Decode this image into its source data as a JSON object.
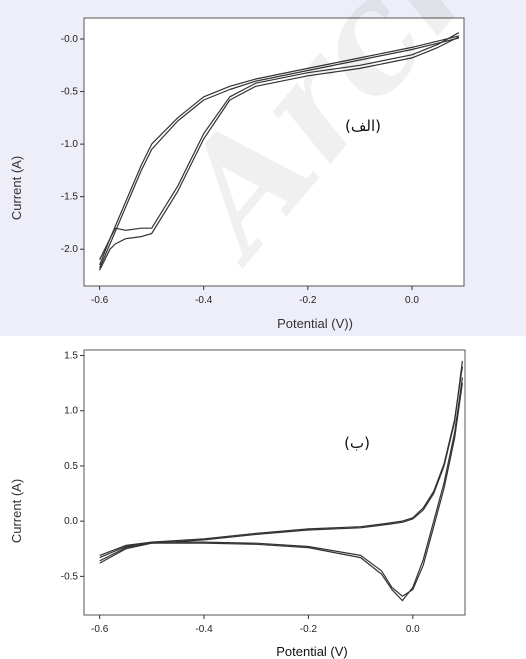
{
  "watermark_text": "Archive",
  "chart_data": [
    {
      "type": "line",
      "panel_label": "(الف)",
      "xlabel": "Potential (V))",
      "ylabel": "Current (A)",
      "xlim": [
        -0.63,
        0.1
      ],
      "ylim": [
        -2.35,
        0.2
      ],
      "xticks": [
        -0.6,
        -0.4,
        -0.2,
        0.0
      ],
      "xtick_labels": [
        "-0.6",
        "-0.4",
        "-0.2",
        "0.0"
      ],
      "yticks": [
        0.0,
        -0.5,
        -1.0,
        -1.5,
        -2.0
      ],
      "ytick_labels": [
        "-0.0",
        "-0.5",
        "-1.0",
        "-1.5",
        "-2.0"
      ],
      "series": [
        {
          "x": [
            -0.6,
            -0.58,
            -0.55,
            -0.52,
            -0.5,
            -0.45,
            -0.4,
            -0.35,
            -0.3,
            -0.2,
            -0.1,
            0.0,
            0.05,
            0.09
          ],
          "y": [
            -2.1,
            -1.9,
            -1.55,
            -1.2,
            -1.0,
            -0.75,
            -0.55,
            -0.45,
            -0.38,
            -0.28,
            -0.18,
            -0.08,
            -0.02,
            0.03
          ]
        },
        {
          "x": [
            0.09,
            0.05,
            0.0,
            -0.1,
            -0.2,
            -0.3,
            -0.35,
            -0.4,
            -0.45,
            -0.5,
            -0.52,
            -0.55,
            -0.57,
            -0.58,
            -0.6
          ],
          "y": [
            0.06,
            -0.05,
            -0.15,
            -0.25,
            -0.32,
            -0.42,
            -0.55,
            -0.9,
            -1.4,
            -1.8,
            -1.8,
            -1.82,
            -1.8,
            -1.9,
            -2.15
          ]
        },
        {
          "x": [
            -0.6,
            -0.58,
            -0.55,
            -0.52,
            -0.5,
            -0.45,
            -0.4,
            -0.35,
            -0.3,
            -0.2,
            -0.1,
            0.0,
            0.05,
            0.09
          ],
          "y": [
            -2.18,
            -1.95,
            -1.6,
            -1.25,
            -1.05,
            -0.78,
            -0.58,
            -0.48,
            -0.4,
            -0.3,
            -0.2,
            -0.1,
            -0.04,
            0.01
          ]
        },
        {
          "x": [
            0.09,
            0.05,
            0.0,
            -0.1,
            -0.2,
            -0.3,
            -0.35,
            -0.4,
            -0.45,
            -0.5,
            -0.52,
            -0.55,
            -0.57,
            -0.58,
            -0.6
          ],
          "y": [
            0.02,
            -0.08,
            -0.18,
            -0.28,
            -0.35,
            -0.45,
            -0.58,
            -0.95,
            -1.45,
            -1.85,
            -1.88,
            -1.9,
            -1.95,
            -2.0,
            -2.2
          ]
        }
      ]
    },
    {
      "type": "line",
      "panel_label": "(ب)",
      "xlabel": "Potential (V)",
      "ylabel": "Current (A)",
      "xlim": [
        -0.63,
        0.1
      ],
      "ylim": [
        -0.85,
        1.55
      ],
      "xticks": [
        -0.6,
        -0.4,
        -0.2,
        0.0
      ],
      "xtick_labels": [
        "-0.6",
        "-0.4",
        "-0.2",
        "0.0"
      ],
      "yticks": [
        1.5,
        1.0,
        0.5,
        0.0,
        -0.5
      ],
      "ytick_labels": [
        "1.5",
        "1.0",
        "0.5",
        "0.0",
        "-0.5"
      ],
      "series": [
        {
          "x": [
            -0.6,
            -0.55,
            -0.5,
            -0.4,
            -0.3,
            -0.2,
            -0.1,
            -0.05,
            -0.02,
            0.0,
            0.02,
            0.04,
            0.06,
            0.08,
            0.095
          ],
          "y": [
            -0.38,
            -0.25,
            -0.2,
            -0.17,
            -0.12,
            -0.08,
            -0.06,
            -0.03,
            -0.01,
            0.02,
            0.1,
            0.25,
            0.5,
            0.9,
            1.45
          ]
        },
        {
          "x": [
            0.095,
            0.08,
            0.06,
            0.04,
            0.02,
            0.0,
            -0.02,
            -0.04,
            -0.06,
            -0.1,
            -0.2,
            -0.3,
            -0.4,
            -0.5,
            -0.55,
            -0.6
          ],
          "y": [
            1.3,
            0.8,
            0.35,
            0.0,
            -0.35,
            -0.6,
            -0.72,
            -0.62,
            -0.48,
            -0.33,
            -0.24,
            -0.21,
            -0.2,
            -0.2,
            -0.23,
            -0.33
          ]
        },
        {
          "x": [
            -0.6,
            -0.55,
            -0.5,
            -0.4,
            -0.3,
            -0.2,
            -0.1,
            -0.05,
            -0.02,
            0.0,
            0.02,
            0.04,
            0.06,
            0.08,
            0.095
          ],
          "y": [
            -0.36,
            -0.24,
            -0.19,
            -0.16,
            -0.11,
            -0.07,
            -0.05,
            -0.02,
            0.0,
            0.03,
            0.12,
            0.27,
            0.52,
            0.92,
            1.4
          ]
        },
        {
          "x": [
            0.095,
            0.08,
            0.06,
            0.04,
            0.02,
            0.0,
            -0.02,
            -0.04,
            -0.06,
            -0.1,
            -0.2,
            -0.3,
            -0.4,
            -0.5,
            -0.55,
            -0.6
          ],
          "y": [
            1.25,
            0.75,
            0.3,
            -0.05,
            -0.4,
            -0.62,
            -0.68,
            -0.6,
            -0.45,
            -0.31,
            -0.23,
            -0.2,
            -0.19,
            -0.19,
            -0.22,
            -0.31
          ]
        }
      ]
    }
  ]
}
